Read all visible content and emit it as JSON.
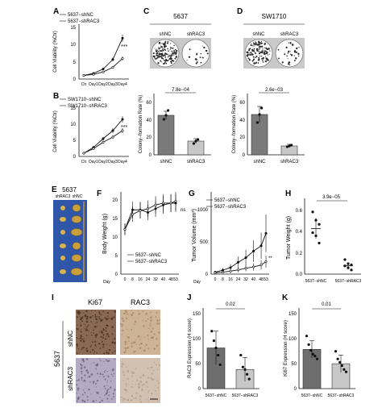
{
  "panels": {
    "A": {
      "label": "A",
      "legend": [
        "5637−shNC",
        "5637−shRAC3"
      ],
      "ylabel": "Cell Viability (%Ctr)",
      "xticks": [
        "Ctr",
        "Day1",
        "Day2",
        "Day3",
        "Day4"
      ],
      "yticks": [
        "0",
        "5",
        "10",
        "15"
      ],
      "sig": "***"
    },
    "B": {
      "label": "B",
      "legend": [
        "SW1710−shNC",
        "SW1710−shRAC3"
      ],
      "ylabel": "Cell Viability (%Ctr)",
      "xticks": [
        "Ctr",
        "Day1",
        "Day2",
        "Day3",
        "Day4"
      ],
      "yticks": [
        "0",
        "5",
        "10",
        "15"
      ],
      "sig": "***"
    },
    "C": {
      "label": "C",
      "cell_line": "5637",
      "dish_labels": [
        "shNC",
        "shRAC3"
      ],
      "pvalue": "7.8e−04",
      "ylabel": "Colony−formation Rate (%)",
      "xticks": [
        "shNC",
        "shRAC3"
      ],
      "yticks": [
        "0",
        "20",
        "40",
        "60"
      ]
    },
    "D": {
      "label": "D",
      "cell_line": "SW1710",
      "dish_labels": [
        "shNC",
        "shRAC3"
      ],
      "pvalue": "2.6e−03",
      "ylabel": "Colony−formation Rate (%)",
      "xticks": [
        "shNC",
        "shRAC3"
      ],
      "yticks": [
        "0",
        "20",
        "40",
        "60"
      ]
    },
    "E": {
      "label": "E",
      "cell_line": "5637",
      "columns": [
        "shRAC3",
        "shNC"
      ]
    },
    "F": {
      "label": "F",
      "ylabel": "Body Weight (g)",
      "xlabel": "Day",
      "xticks": [
        "0",
        "8",
        "16",
        "24",
        "32",
        "40",
        "48",
        "53"
      ],
      "yticks": [
        "0",
        "5",
        "10",
        "15",
        "20"
      ],
      "legend": [
        "5637−shNC",
        "5637−shRAC3"
      ],
      "sig": "ns"
    },
    "G": {
      "label": "G",
      "ylabel": "Tumor Volume (mm³)",
      "xlabel": "Day",
      "xticks": [
        "0",
        "8",
        "16",
        "24",
        "32",
        "40",
        "48",
        "53"
      ],
      "yticks": [
        "0",
        "500",
        "1000"
      ],
      "legend": [
        "5637−shNC",
        "5637−shRAC3"
      ],
      "sig": "**"
    },
    "H": {
      "label": "H",
      "pvalue": "3.9e−05",
      "ylabel": "Tumor Weight (g)",
      "xticks": [
        "5637−shNC",
        "5637−shRAC3"
      ],
      "yticks": [
        "0.0",
        "0.2",
        "0.4",
        "0.6"
      ]
    },
    "I": {
      "label": "I",
      "columns": [
        "Ki67",
        "RAC3"
      ],
      "rows": [
        "shNC",
        "shRAC3"
      ],
      "cell_line": "5637"
    },
    "J": {
      "label": "J",
      "pvalue": "0.02",
      "ylabel": "RAC3 Expression (H score)",
      "xticks": [
        "5637−shNC",
        "5637−shRAC3"
      ],
      "yticks": [
        "0",
        "50",
        "100",
        "150"
      ]
    },
    "K": {
      "label": "K",
      "pvalue": "0.01",
      "ylabel": "Ki67 Expression (H score)",
      "xticks": [
        "5637−shNC",
        "5637−shRAC3"
      ],
      "yticks": [
        "0",
        "50",
        "100",
        "150"
      ]
    }
  },
  "chart_data": [
    {
      "panel": "A",
      "type": "line",
      "x": [
        "Ctr",
        "Day1",
        "Day2",
        "Day3",
        "Day4"
      ],
      "series": [
        {
          "name": "5637−shNC",
          "values": [
            1,
            1.6,
            2.8,
            5.5,
            11.5
          ]
        },
        {
          "name": "5637−shRAC3",
          "values": [
            1,
            1.3,
            2.0,
            3.3,
            5.8
          ]
        }
      ],
      "ylim": [
        0,
        15
      ]
    },
    {
      "panel": "B",
      "type": "line",
      "x": [
        "Ctr",
        "Day1",
        "Day2",
        "Day3",
        "Day4"
      ],
      "series": [
        {
          "name": "SW1710−shNC",
          "values": [
            1,
            2.8,
            5.5,
            8.0,
            11.5
          ]
        },
        {
          "name": "SW1710−shRAC3",
          "values": [
            1,
            2.4,
            4.4,
            6.0,
            8.0
          ]
        }
      ],
      "ylim": [
        0,
        15
      ]
    },
    {
      "panel": "C",
      "type": "bar",
      "categories": [
        "shNC",
        "shRAC3"
      ],
      "values": [
        49,
        17
      ],
      "errors": [
        5,
        3
      ],
      "points": [
        [
          44,
          49,
          55
        ],
        [
          14,
          17,
          19
        ]
      ],
      "ylim": [
        0,
        70
      ]
    },
    {
      "panel": "D",
      "type": "bar",
      "categories": [
        "shNC",
        "shRAC3"
      ],
      "values": [
        50,
        11
      ],
      "errors": [
        10,
        2
      ],
      "points": [
        [
          40,
          50,
          58
        ],
        [
          10,
          11,
          12
        ]
      ],
      "ylim": [
        0,
        70
      ]
    },
    {
      "panel": "F",
      "type": "line",
      "x": [
        0,
        8,
        16,
        24,
        32,
        40,
        48,
        53
      ],
      "series": [
        {
          "name": "5637−shNC",
          "values": [
            12,
            17.2,
            17.2,
            16.5,
            17.5,
            18.5,
            19.0,
            19.0
          ]
        },
        {
          "name": "5637−shRAC3",
          "values": [
            12,
            16.0,
            17.0,
            17.5,
            18.5,
            19.0,
            19.0,
            19.5
          ]
        }
      ],
      "ylim": [
        0,
        22
      ]
    },
    {
      "panel": "G",
      "type": "line",
      "x": [
        0,
        8,
        16,
        24,
        32,
        40,
        48,
        53
      ],
      "series": [
        {
          "name": "5637−shNC",
          "values": [
            30,
            60,
            100,
            180,
            250,
            350,
            430,
            620
          ]
        },
        {
          "name": "5637−shRAC3",
          "values": [
            20,
            30,
            45,
            65,
            90,
            110,
            140,
            190
          ]
        }
      ],
      "ylim": [
        0,
        1250
      ]
    },
    {
      "panel": "H",
      "type": "scatter",
      "categories": [
        "5637−shNC",
        "5637−shRAC3"
      ],
      "points": [
        [
          0.6,
          0.52,
          0.48,
          0.4,
          0.37,
          0.3
        ],
        [
          0.14,
          0.1,
          0.09,
          0.08,
          0.06,
          0.04
        ]
      ],
      "means": [
        0.44,
        0.08
      ],
      "ylim": [
        0,
        0.7
      ]
    },
    {
      "panel": "J",
      "type": "bar",
      "categories": [
        "5637−shNC",
        "5637−shRAC3"
      ],
      "values": [
        85,
        40
      ],
      "errors": [
        35,
        25
      ],
      "points": [
        [
          120,
          100,
          85,
          70,
          50
        ],
        [
          70,
          45,
          40,
          30,
          20
        ]
      ],
      "ylim": [
        0,
        160
      ]
    },
    {
      "panel": "K",
      "type": "bar",
      "categories": [
        "5637−shNC",
        "5637−shRAC3"
      ],
      "values": [
        82,
        52
      ],
      "errors": [
        18,
        18
      ],
      "points": [
        [
          110,
          92,
          80,
          72,
          68,
          62
        ],
        [
          78,
          62,
          55,
          48,
          40,
          35
        ]
      ],
      "ylim": [
        0,
        160
      ]
    }
  ]
}
